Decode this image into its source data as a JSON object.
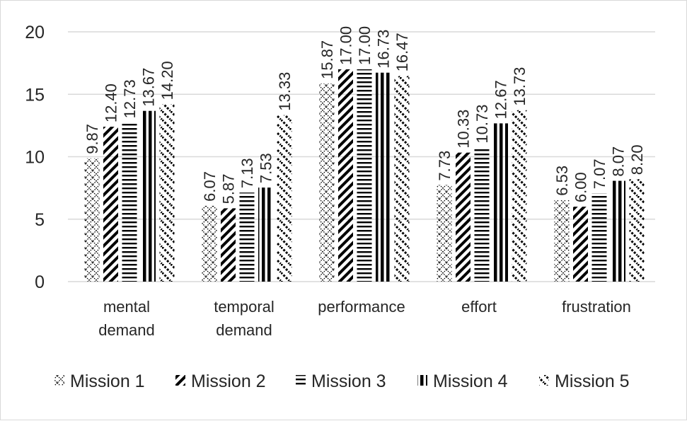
{
  "chart_data": {
    "type": "bar",
    "title": "",
    "xlabel": "",
    "ylabel": "",
    "categories": [
      [
        "mental",
        "demand"
      ],
      [
        "temporal",
        "demand"
      ],
      [
        "performance"
      ],
      [
        "effort"
      ],
      [
        "frustration"
      ]
    ],
    "series": [
      {
        "name": "Mission 1",
        "values": [
          9.87,
          6.07,
          15.87,
          7.73,
          6.53
        ],
        "labels": [
          "9.87",
          "6.07",
          "15.87",
          "7.73",
          "6.53"
        ],
        "pattern": "crosshatch-dotted"
      },
      {
        "name": "Mission 2",
        "values": [
          12.4,
          5.87,
          17.0,
          10.33,
          6.0
        ],
        "labels": [
          "12.40",
          "5.87",
          "17.00",
          "10.33",
          "6.00"
        ],
        "pattern": "wide-diagonal"
      },
      {
        "name": "Mission 3",
        "values": [
          12.73,
          7.13,
          17.0,
          10.73,
          7.07
        ],
        "labels": [
          "12.73",
          "7.13",
          "17.00",
          "10.73",
          "7.07"
        ],
        "pattern": "horizontal-lines"
      },
      {
        "name": "Mission 4",
        "values": [
          13.67,
          7.53,
          16.73,
          12.67,
          8.07
        ],
        "labels": [
          "13.67",
          "7.53",
          "16.73",
          "12.67",
          "8.07"
        ],
        "pattern": "vertical-lines"
      },
      {
        "name": "Mission 5",
        "values": [
          14.2,
          13.33,
          16.47,
          13.73,
          8.2
        ],
        "labels": [
          "14.20",
          "13.33",
          "16.47",
          "13.73",
          "8.20"
        ],
        "pattern": "zigzag"
      }
    ],
    "ylim": [
      0,
      20
    ],
    "yticks": [
      0,
      5,
      10,
      15,
      20
    ],
    "grid": true,
    "legend": "bottom",
    "colors": {
      "ink": "#000000",
      "grid": "#d9d9d9",
      "text": "#262626"
    }
  }
}
